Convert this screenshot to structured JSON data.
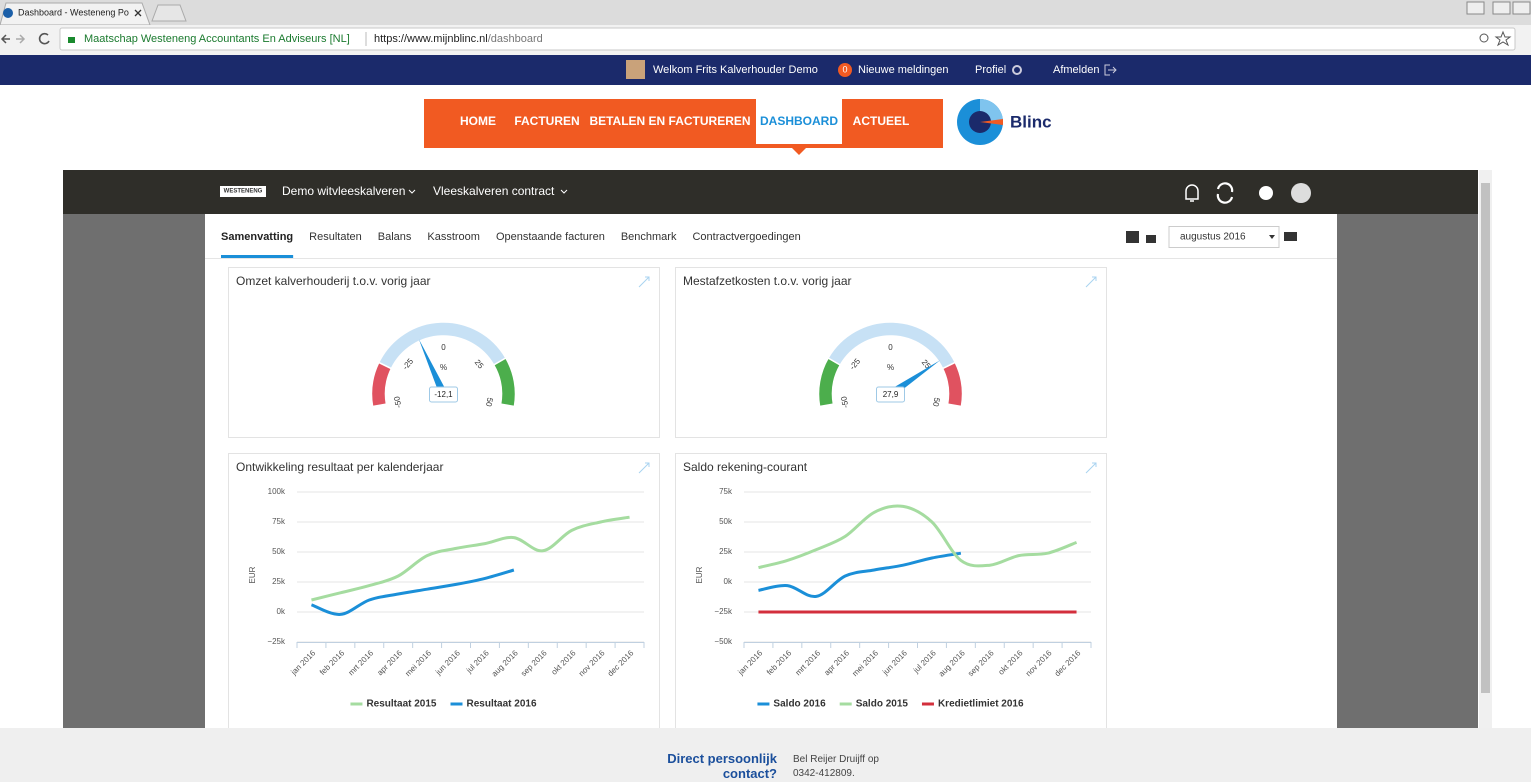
{
  "browser": {
    "tab_title": "Dashboard - Westeneng Po",
    "site_name": "Maatschap Westeneng Accountants En Adviseurs [NL]",
    "url_host": "https://www.mijnblinc.nl",
    "url_path": "/dashboard"
  },
  "topbar": {
    "welcome": "Welkom Frits Kalverhouder Demo",
    "notification_count": 0,
    "notifications": "Nieuwe meldingen",
    "profile": "Profiel",
    "logout": "Afmelden"
  },
  "nav": {
    "items": [
      "HOME",
      "FACTUREN",
      "BETALEN EN FACTUREREN",
      "DASHBOARD",
      "ACTUEEL"
    ],
    "active": 3,
    "logo": "Blinc"
  },
  "app": {
    "logo": "WESTENENG",
    "company": "Demo witvleeskalveren",
    "contract": "Vleeskalveren contract",
    "tabs": [
      "Samenvatting",
      "Resultaten",
      "Balans",
      "Kasstroom",
      "Openstaande facturen",
      "Benchmark",
      "Contractvergoedingen"
    ],
    "active_tab": 0,
    "period": "augustus 2016"
  },
  "widgets": [
    {
      "title": "Omzet kalverhouderij t.o.v. vorig jaar",
      "gauge": {
        "min": -50,
        "max": 50,
        "ticks": [
          -50,
          -25,
          0,
          25,
          50
        ],
        "unit": "%",
        "value": -12.1,
        "value_label": "-12,1",
        "bands": [
          {
            "from": -50,
            "to": -32,
            "color": "#e05260"
          },
          {
            "from": -32,
            "to": 30,
            "color": "#c7e1f5"
          },
          {
            "from": 30,
            "to": 50,
            "color": "#4cae4c"
          }
        ]
      }
    },
    {
      "title": "Mestafzetkosten t.o.v. vorig jaar",
      "gauge": {
        "min": -50,
        "max": 50,
        "ticks": [
          -50,
          -25,
          0,
          25,
          50
        ],
        "unit": "%",
        "value": 27.9,
        "value_label": "27,9",
        "bands": [
          {
            "from": -50,
            "to": -30,
            "color": "#4cae4c"
          },
          {
            "from": -30,
            "to": 32,
            "color": "#c7e1f5"
          },
          {
            "from": 32,
            "to": 50,
            "color": "#e05260"
          }
        ]
      }
    },
    {
      "title": "Ontwikkeling resultaat per kalenderjaar",
      "chart": {
        "type": "line",
        "y_label": "EUR",
        "categories": [
          "jan 2016",
          "feb 2016",
          "mrt 2016",
          "apr 2016",
          "mei 2016",
          "jun 2016",
          "jul 2016",
          "aug 2016",
          "sep 2016",
          "okt 2016",
          "nov 2016",
          "dec 2016"
        ],
        "ylim": [
          -25000,
          100000
        ],
        "yticks": [
          {
            "value": 100000,
            "label": "100k"
          },
          {
            "value": 75000,
            "label": "75k"
          },
          {
            "value": 50000,
            "label": "50k"
          },
          {
            "value": 25000,
            "label": "25k"
          },
          {
            "value": 0,
            "label": "0k"
          },
          {
            "value": -25000,
            "label": "−25k"
          }
        ],
        "grid": true,
        "series": [
          {
            "name": "Resultaat 2015",
            "color": "#a5dca0",
            "values": [
              10000,
              16000,
              22000,
              30000,
              47000,
              53000,
              57000,
              62000,
              51000,
              68000,
              75000,
              79000
            ]
          },
          {
            "name": "Resultaat 2016",
            "color": "#1b8fd8",
            "values": [
              6000,
              -2000,
              10000,
              15000,
              19000,
              23000,
              28000,
              35000,
              null,
              null,
              null,
              null
            ]
          }
        ]
      }
    },
    {
      "title": "Saldo rekening-courant",
      "chart": {
        "type": "line",
        "y_label": "EUR",
        "categories": [
          "jan 2016",
          "feb 2016",
          "mrt 2016",
          "apr 2016",
          "mei 2016",
          "jun 2016",
          "jul 2016",
          "aug 2016",
          "sep 2016",
          "okt 2016",
          "nov 2016",
          "dec 2016"
        ],
        "ylim": [
          -50000,
          75000
        ],
        "yticks": [
          {
            "value": 75000,
            "label": "75k"
          },
          {
            "value": 50000,
            "label": "50k"
          },
          {
            "value": 25000,
            "label": "25k"
          },
          {
            "value": 0,
            "label": "0k"
          },
          {
            "value": -25000,
            "label": "−25k"
          },
          {
            "value": -50000,
            "label": "−50k"
          }
        ],
        "grid": true,
        "series": [
          {
            "name": "Saldo 2016",
            "color": "#1b8fd8",
            "values": [
              -7000,
              -3000,
              -12000,
              5000,
              10000,
              14000,
              20000,
              24000,
              null,
              null,
              null,
              null
            ]
          },
          {
            "name": "Saldo 2015",
            "color": "#a5dca0",
            "values": [
              12000,
              18000,
              27000,
              38000,
              58000,
              63000,
              50000,
              18000,
              14000,
              22000,
              24000,
              33000
            ]
          },
          {
            "name": "Kredietlimiet 2016",
            "color": "#d32f3c",
            "values": [
              -25000,
              -25000,
              -25000,
              -25000,
              -25000,
              -25000,
              -25000,
              -25000,
              -25000,
              -25000,
              -25000,
              -25000
            ]
          }
        ]
      }
    }
  ],
  "footer": {
    "heading": "Direct persoonlijk contact?",
    "text": "Bel Reijer Druijff op 0342-412809."
  }
}
